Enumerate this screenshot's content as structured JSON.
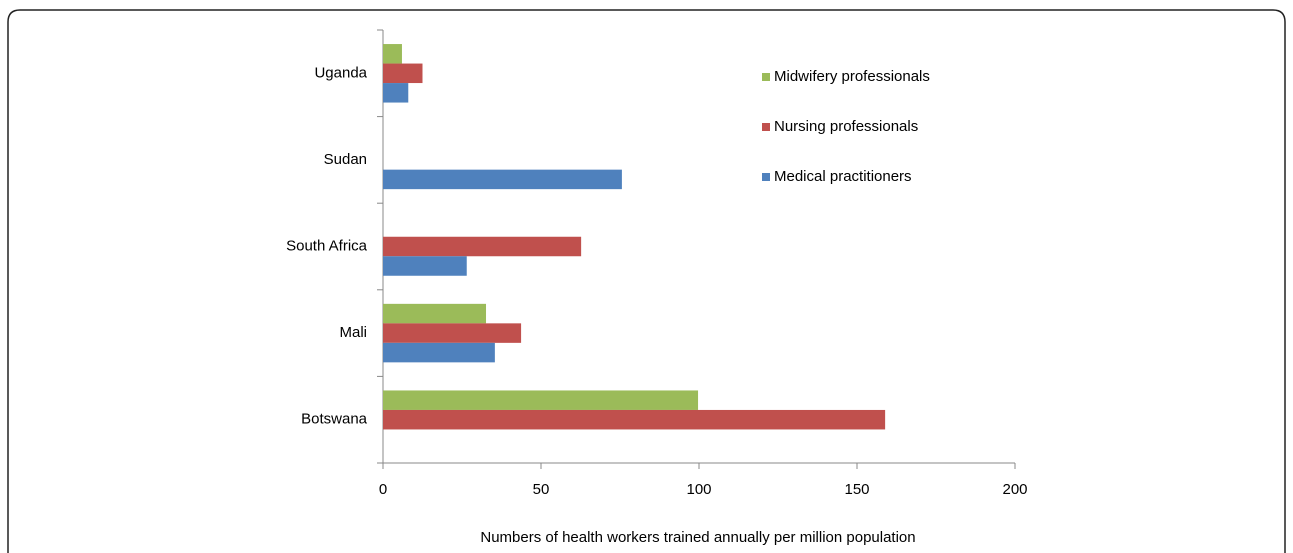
{
  "chart_data": {
    "type": "barh",
    "x_label": "Numbers of health workers trained annually per million population",
    "categories": [
      "Botswana",
      "Mali",
      "South Africa",
      "Sudan",
      "Uganda"
    ],
    "series": [
      {
        "name": "Midwifery professionals",
        "color": "#9bbb59",
        "values": [
          99.7,
          32.6,
          null,
          null,
          6
        ]
      },
      {
        "name": "Nursing professionals",
        "color": "#c0504d",
        "values": [
          158.9,
          43.7,
          62.7,
          null,
          12.5
        ]
      },
      {
        "name": "Medical practitioners",
        "color": "#4f81bd",
        "values": [
          null,
          35.4,
          26.5,
          75.6,
          8
        ]
      }
    ],
    "xlim": [
      0,
      200
    ],
    "xticks": [
      0,
      50,
      100,
      150,
      200
    ],
    "grid": false
  }
}
